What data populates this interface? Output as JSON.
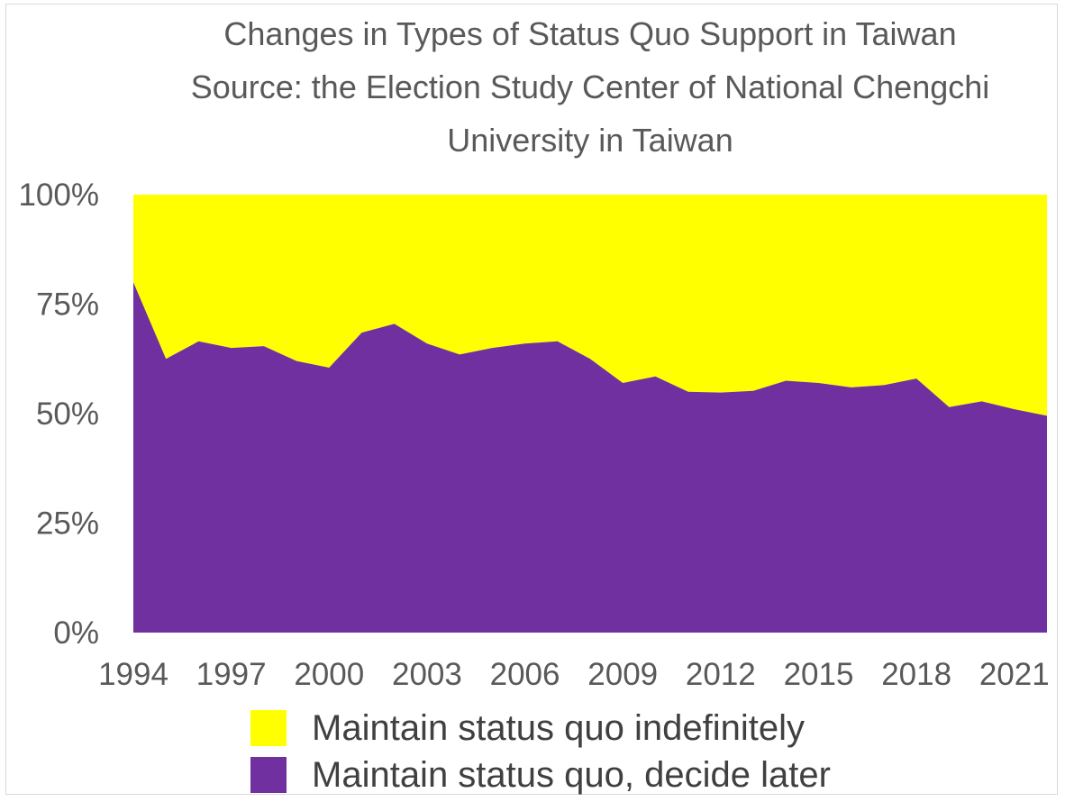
{
  "colors": {
    "indefinitely": "#ffff00",
    "decide_later": "#7030a0",
    "text": "#595959"
  },
  "chart_data": {
    "type": "area",
    "stacked": true,
    "normalized_to_percent": true,
    "title": [
      "Changes in Types of Status Quo Support in Taiwan",
      "Source: the Election Study Center of National Chengchi",
      "University in Taiwan"
    ],
    "x": [
      1994,
      1995,
      1996,
      1997,
      1998,
      1999,
      2000,
      2001,
      2002,
      2003,
      2004,
      2005,
      2006,
      2007,
      2008,
      2009,
      2010,
      2011,
      2012,
      2013,
      2014,
      2015,
      2016,
      2017,
      2018,
      2019,
      2020,
      2021,
      2022
    ],
    "x_tick_labels": [
      "1994",
      "1997",
      "2000",
      "2003",
      "2006",
      "2009",
      "2012",
      "2015",
      "2018",
      "2021"
    ],
    "y_tick_labels": [
      "0%",
      "25%",
      "50%",
      "75%",
      "100%"
    ],
    "ylim": [
      0,
      100
    ],
    "series": [
      {
        "name": "Maintain status quo, decide later",
        "color": "#7030a0",
        "values": [
          80,
          62.5,
          66.5,
          65,
          65.4,
          62,
          60.5,
          68.5,
          70.5,
          66,
          63.5,
          65,
          66,
          66.5,
          62.5,
          57,
          58.5,
          55,
          54.8,
          55.2,
          57.5,
          57,
          56,
          56.5,
          58,
          51.5,
          52.8,
          51,
          49.5
        ]
      },
      {
        "name": "Maintain status quo indefinitely",
        "color": "#ffff00",
        "values": [
          20,
          37.5,
          33.5,
          35,
          34.6,
          38,
          39.5,
          31.5,
          29.5,
          34,
          36.5,
          35,
          34,
          33.5,
          37.5,
          43,
          41.5,
          45,
          45.2,
          44.8,
          42.5,
          43,
          44,
          43.5,
          42,
          48.5,
          47.2,
          49,
          50.5
        ]
      }
    ],
    "legend": [
      "Maintain status quo indefinitely",
      "Maintain status quo, decide later"
    ]
  }
}
